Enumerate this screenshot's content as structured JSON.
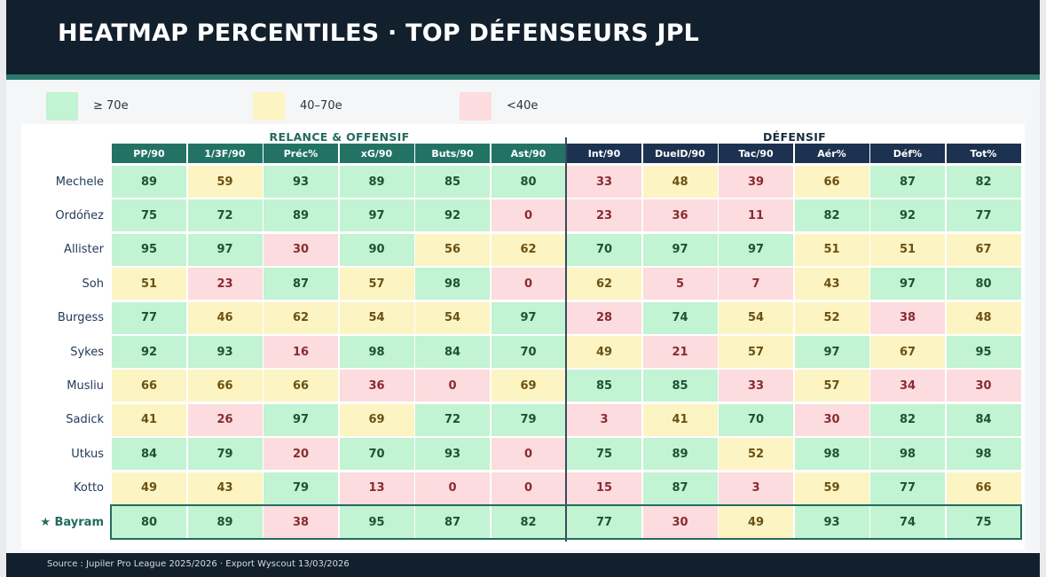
{
  "header": {
    "title": "HEATMAP PERCENTILES  ·  TOP DÉFENSEURS JPL"
  },
  "legend": [
    {
      "label": "≥ 70e",
      "color": "#c2f3d2"
    },
    {
      "label": "40–70e",
      "color": "#fdf4c3"
    },
    {
      "label": "<40e",
      "color": "#fcdcde"
    }
  ],
  "footer": {
    "source": "Source : Jupiler Pro League 2025/2026 · Export Wyscout 13/03/2026"
  },
  "colors": {
    "green": "#c2f3d2",
    "yellow": "#fdf4c3",
    "red": "#fcdcde",
    "offensive_header": "#237365",
    "defensive_header": "#1d3250"
  },
  "chart_data": {
    "type": "heatmap",
    "title": "HEATMAP PERCENTILES  ·  TOP DÉFENSEURS JPL",
    "groups": [
      {
        "label": "RELANCE & OFFENSIF",
        "columns": [
          "PP/90",
          "1/3F/90",
          "Préc%",
          "xG/90",
          "Buts/90",
          "Ast/90"
        ]
      },
      {
        "label": "DÉFENSIF",
        "columns": [
          "Int/90",
          "DuelD/90",
          "Tac/90",
          "Aér%",
          "Déf%",
          "Tot%"
        ]
      }
    ],
    "columns": [
      "PP/90",
      "1/3F/90",
      "Préc%",
      "xG/90",
      "Buts/90",
      "Ast/90",
      "Int/90",
      "DuelD/90",
      "Tac/90",
      "Aér%",
      "Déf%",
      "Tot%"
    ],
    "rows": [
      {
        "label": "Mechele",
        "values": [
          89,
          59,
          93,
          89,
          85,
          80,
          33,
          48,
          39,
          66,
          87,
          82
        ]
      },
      {
        "label": "Ordóñez",
        "values": [
          75,
          72,
          89,
          97,
          92,
          0,
          23,
          36,
          11,
          82,
          92,
          77
        ]
      },
      {
        "label": "Allister",
        "values": [
          95,
          97,
          30,
          90,
          56,
          62,
          70,
          97,
          97,
          51,
          51,
          67
        ]
      },
      {
        "label": "Soh",
        "values": [
          51,
          23,
          87,
          57,
          98,
          0,
          62,
          5,
          7,
          43,
          97,
          80
        ]
      },
      {
        "label": "Burgess",
        "values": [
          77,
          46,
          62,
          54,
          54,
          97,
          28,
          74,
          54,
          52,
          38,
          48
        ]
      },
      {
        "label": "Sykes",
        "values": [
          92,
          93,
          16,
          98,
          84,
          70,
          49,
          21,
          57,
          97,
          67,
          95
        ]
      },
      {
        "label": "Musliu",
        "values": [
          66,
          66,
          66,
          36,
          0,
          69,
          85,
          85,
          33,
          57,
          34,
          30
        ]
      },
      {
        "label": "Sadick",
        "values": [
          41,
          26,
          97,
          69,
          72,
          79,
          3,
          41,
          70,
          30,
          82,
          84
        ]
      },
      {
        "label": "Utkus",
        "values": [
          84,
          79,
          20,
          70,
          93,
          0,
          75,
          89,
          52,
          98,
          98,
          98
        ]
      },
      {
        "label": "Kotto",
        "values": [
          49,
          43,
          79,
          13,
          0,
          0,
          15,
          87,
          3,
          59,
          77,
          66
        ]
      },
      {
        "label": "★ Bayram",
        "values": [
          80,
          89,
          38,
          95,
          87,
          82,
          77,
          30,
          49,
          93,
          74,
          75
        ],
        "highlight": true
      }
    ],
    "thresholds": {
      "green_min": 70,
      "yellow_min": 40
    }
  }
}
